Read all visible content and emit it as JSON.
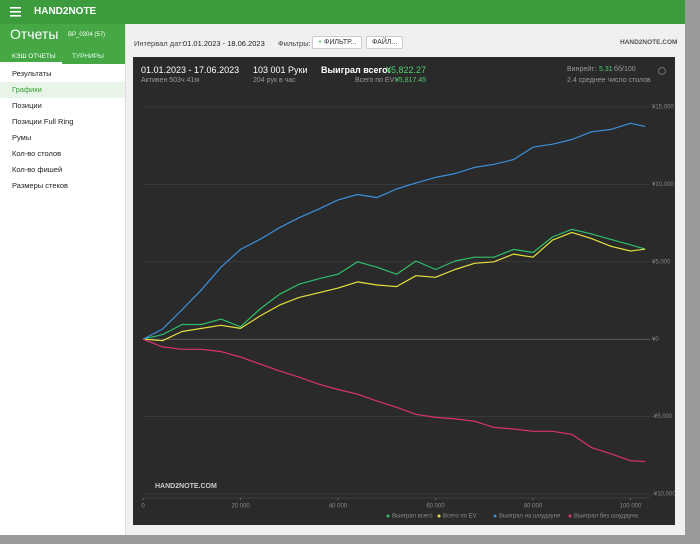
{
  "app": {
    "title": "HAND2NOTE"
  },
  "sidebar": {
    "heading": "Отчеты",
    "profile": "BP_0304 (57)",
    "tabs": [
      "КЭШ ОТЧЕТЫ",
      "ТУРНИРЫ"
    ],
    "items": [
      "Результаты",
      "Графики",
      "Позиции",
      "Позиции Full Ring",
      "Румы",
      "Кол-во столов",
      "Кол-во фишей",
      "Размеры стеков"
    ]
  },
  "toolbar": {
    "interval_label": "Интервал дат:",
    "interval": "01.01.2023 - 18.06.2023",
    "filters_label": "Фильтры:",
    "filter_button": "ФИЛЬТР...",
    "file_button": "ФАЙЛ...",
    "logo": "HAND2NOTE.COM"
  },
  "summary": {
    "dates": "01.01.2023 - 17.06.2023",
    "active": "Активен 503ч 41м",
    "hands": "103 001 Руки",
    "rate": "204 рук в час",
    "won_label": "Выиграл всего:",
    "won": "¥5,822.27",
    "ev_label": "Всего по EV:",
    "ev": "¥5,817.45",
    "winrate_label": "Винрейт:",
    "winrate": "5.31",
    "winrate_unit": "бб/100",
    "tables": "2.4 среднее число столов",
    "watermark": "HAND2NOTE.COM"
  },
  "chart_data": {
    "type": "line",
    "x": [
      0,
      4000,
      8000,
      12000,
      16000,
      20000,
      24000,
      28000,
      32000,
      36000,
      40000,
      44000,
      48000,
      52000,
      56000,
      60000,
      64000,
      68000,
      72000,
      76000,
      80000,
      84000,
      88000,
      92000,
      96000,
      100000,
      103001
    ],
    "series": [
      {
        "name": "Выиграл всего",
        "color": "#2fbf6a",
        "values": [
          0,
          300,
          950,
          950,
          1300,
          800,
          1950,
          2900,
          3550,
          3900,
          4200,
          5000,
          4650,
          4200,
          5050,
          4500,
          5050,
          5300,
          5300,
          5800,
          5600,
          6600,
          7100,
          6800,
          6450,
          6100,
          5822
        ]
      },
      {
        "name": "Всего по EV",
        "color": "#e6e03c",
        "values": [
          0,
          -100,
          500,
          700,
          900,
          700,
          1500,
          2200,
          2700,
          3000,
          3300,
          3700,
          3500,
          3400,
          4100,
          4000,
          4500,
          4900,
          5000,
          5500,
          5300,
          6400,
          6900,
          6500,
          6000,
          5700,
          5817
        ]
      },
      {
        "name": "Выиграл на шоудауне",
        "color": "#3b8fdc",
        "values": [
          0,
          650,
          1900,
          3200,
          4650,
          5800,
          6450,
          7200,
          7850,
          8400,
          9000,
          9350,
          9150,
          9700,
          10100,
          10450,
          10700,
          11100,
          11300,
          11600,
          12400,
          12600,
          12900,
          13400,
          13550,
          13950,
          13750
        ]
      },
      {
        "name": "Выиграл без шоудауна",
        "color": "#d8336a",
        "values": [
          0,
          -500,
          -650,
          -650,
          -800,
          -1150,
          -1600,
          -2050,
          -2450,
          -2900,
          -3250,
          -3550,
          -4000,
          -4400,
          -4850,
          -5050,
          -5150,
          -5300,
          -5700,
          -5800,
          -5950,
          -5950,
          -6150,
          -7000,
          -7400,
          -7850,
          -7900
        ]
      }
    ],
    "xlim": [
      0,
      104000
    ],
    "xticks": [
      0,
      {
        "value": 20000,
        "label": "20 000"
      },
      {
        "value": 40000,
        "label": "40 000"
      },
      {
        "value": 60000,
        "label": "60 000"
      },
      {
        "value": 80000,
        "label": "80 000"
      },
      {
        "value": 100000,
        "label": "100 000"
      }
    ],
    "ylim": [
      -10000,
      15000
    ],
    "yticks": [
      {
        "value": -10000,
        "label": "-¥10,000"
      },
      {
        "value": -5000,
        "label": "-¥5,000"
      },
      {
        "value": 0,
        "label": "¥0"
      },
      {
        "value": 5000,
        "label": "¥5,000"
      },
      {
        "value": 10000,
        "label": "¥10,000"
      },
      {
        "value": 15000,
        "label": "¥15,000"
      }
    ],
    "grid": true
  }
}
